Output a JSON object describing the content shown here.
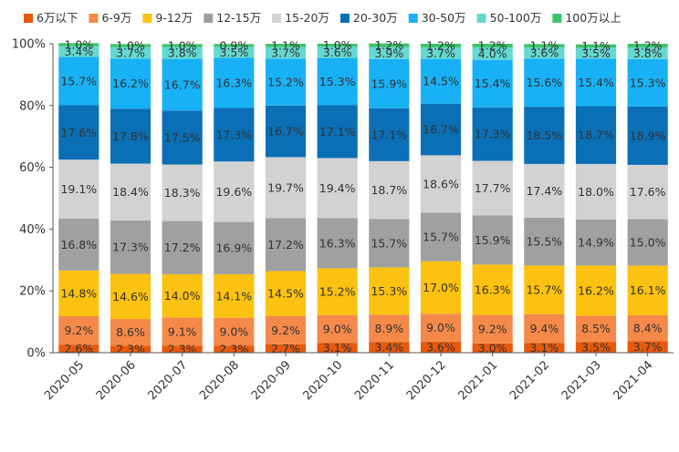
{
  "chart_data": {
    "type": "bar",
    "stacked": true,
    "title": "",
    "xlabel": "",
    "ylabel": "",
    "ylim": [
      0,
      100
    ],
    "y_ticks": [
      "0%",
      "20%",
      "40%",
      "60%",
      "80%",
      "100%"
    ],
    "y_tick_values": [
      0,
      20,
      40,
      60,
      80,
      100
    ],
    "grid": false,
    "legend_position": "top",
    "categories": [
      "2020-05",
      "2020-06",
      "2020-07",
      "2020-08",
      "2020-09",
      "2020-10",
      "2020-11",
      "2020-12",
      "2021-01",
      "2021-02",
      "2021-03",
      "2021-04"
    ],
    "series": [
      {
        "name": "6万以下",
        "color": "#e8590c",
        "values": [
          2.6,
          2.3,
          2.3,
          2.3,
          2.7,
          3.1,
          3.4,
          3.6,
          3.0,
          3.1,
          3.5,
          3.7
        ]
      },
      {
        "name": "6-9万",
        "color": "#f4894a",
        "values": [
          9.2,
          8.6,
          9.1,
          9.0,
          9.2,
          9.0,
          8.9,
          9.0,
          9.2,
          9.4,
          8.5,
          8.4
        ]
      },
      {
        "name": "9-12万",
        "color": "#fcc211",
        "values": [
          14.8,
          14.6,
          14.0,
          14.1,
          14.5,
          15.2,
          15.3,
          17.0,
          16.3,
          15.7,
          16.2,
          16.1
        ]
      },
      {
        "name": "12-15万",
        "color": "#a0a0a0",
        "values": [
          16.8,
          17.3,
          17.2,
          16.9,
          17.2,
          16.3,
          15.7,
          15.7,
          15.9,
          15.5,
          14.9,
          15.0
        ]
      },
      {
        "name": "15-20万",
        "color": "#d2d2d2",
        "values": [
          19.1,
          18.4,
          18.3,
          19.6,
          19.7,
          19.4,
          18.7,
          18.6,
          17.7,
          17.4,
          18.0,
          17.6
        ]
      },
      {
        "name": "20-30万",
        "color": "#0a6fb5",
        "values": [
          17.6,
          17.8,
          17.5,
          17.3,
          16.7,
          17.1,
          17.1,
          16.7,
          17.3,
          18.5,
          18.7,
          18.9
        ]
      },
      {
        "name": "30-50万",
        "color": "#19b1f5",
        "values": [
          15.7,
          16.2,
          16.7,
          16.3,
          15.2,
          15.3,
          15.9,
          14.5,
          15.4,
          15.6,
          15.4,
          15.3
        ]
      },
      {
        "name": "50-100万",
        "color": "#64d9d2",
        "values": [
          3.4,
          3.7,
          3.8,
          3.5,
          3.7,
          3.6,
          3.9,
          3.7,
          4.0,
          3.6,
          3.5,
          3.8
        ]
      },
      {
        "name": "100万以上",
        "color": "#3dc46a",
        "values": [
          1.0,
          1.0,
          1.0,
          0.9,
          1.1,
          1.0,
          1.2,
          1.2,
          1.2,
          1.1,
          1.1,
          1.2
        ]
      }
    ]
  }
}
